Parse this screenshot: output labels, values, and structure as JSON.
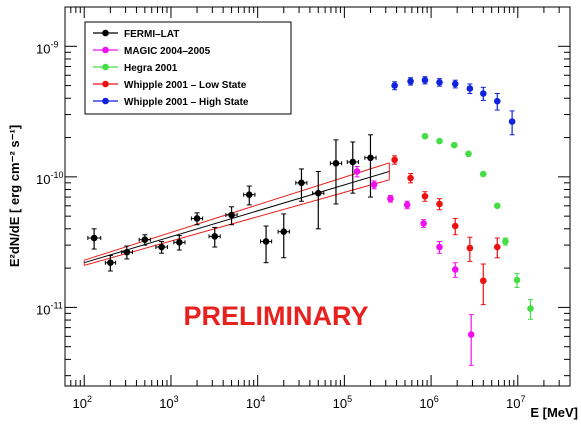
{
  "chart_data": {
    "type": "scatter",
    "x_scale": "log",
    "y_scale": "log",
    "xlim": [
      60,
      40000000
    ],
    "ylim": [
      2.5e-12,
      2e-09
    ],
    "xlabel": "E [MeV]",
    "ylabel": "E²dN/dE [ erg cm⁻² s⁻¹]",
    "x_ticks": [
      {
        "value": 100,
        "base": "10",
        "exp": "2"
      },
      {
        "value": 1000,
        "base": "10",
        "exp": "3"
      },
      {
        "value": 10000,
        "base": "10",
        "exp": "4"
      },
      {
        "value": 100000,
        "base": "10",
        "exp": "5"
      },
      {
        "value": 1000000,
        "base": "10",
        "exp": "6"
      },
      {
        "value": 10000000,
        "base": "10",
        "exp": "7"
      }
    ],
    "y_ticks": [
      {
        "value": 1e-11,
        "base": "10",
        "exp": "-11"
      },
      {
        "value": 1e-10,
        "base": "10",
        "exp": "-10"
      },
      {
        "value": 1e-09,
        "base": "10",
        "exp": "-9"
      }
    ],
    "legend_position": "top-left",
    "annotation": {
      "text": "PRELIMINARY",
      "color": "#e8201e"
    },
    "fit_band": {
      "color": "#e8201e",
      "line_color": "#000000",
      "x_range": [
        100,
        330000
      ],
      "center": [
        2.2e-11,
        1.1e-10
      ],
      "upper": [
        2.3e-11,
        1.28e-10
      ],
      "lower": [
        2.1e-11,
        9.5e-11
      ]
    },
    "series": [
      {
        "name": "FERMI–LAT",
        "color": "#000000",
        "points": [
          {
            "x": 130,
            "y": 3.4e-11,
            "yerr": [
              6e-12,
              6e-12
            ],
            "xerr": [
              20,
              25
            ]
          },
          {
            "x": 200,
            "y": 2.2e-11,
            "yerr": [
              3e-12,
              3e-12
            ],
            "xerr": [
              25,
              30
            ]
          },
          {
            "x": 310,
            "y": 2.65e-11,
            "yerr": [
              3e-12,
              3e-12
            ],
            "xerr": [
              40,
              50
            ]
          },
          {
            "x": 500,
            "y": 3.3e-11,
            "yerr": [
              3e-12,
              3e-12
            ],
            "xerr": [
              70,
              80
            ]
          },
          {
            "x": 780,
            "y": 2.9e-11,
            "yerr": [
              3e-12,
              3e-12
            ],
            "xerr": [
              110,
              130
            ]
          },
          {
            "x": 1250,
            "y": 3.15e-11,
            "yerr": [
              4e-12,
              4e-12
            ],
            "xerr": [
              170,
              200
            ]
          },
          {
            "x": 2000,
            "y": 4.8e-11,
            "yerr": [
              5e-12,
              5e-12
            ],
            "xerr": [
              280,
              320
            ]
          },
          {
            "x": 3200,
            "y": 3.5e-11,
            "yerr": [
              6e-12,
              6e-12
            ],
            "xerr": [
              450,
              500
            ]
          },
          {
            "x": 5000,
            "y": 5.1e-11,
            "yerr": [
              8e-12,
              8e-12
            ],
            "xerr": [
              700,
              800
            ]
          },
          {
            "x": 8000,
            "y": 7.3e-11,
            "yerr": [
              1.2e-11,
              1.2e-11
            ],
            "xerr": [
              1100,
              1300
            ]
          },
          {
            "x": 12500,
            "y": 3.2e-11,
            "yerr": [
              1e-11,
              1e-11
            ],
            "xerr": [
              1700,
              2000
            ]
          },
          {
            "x": 20000,
            "y": 3.8e-11,
            "yerr": [
              1.4e-11,
              1.4e-11
            ],
            "xerr": [
              2800,
              3200
            ]
          },
          {
            "x": 32000,
            "y": 9e-11,
            "yerr": [
              2.5e-11,
              2.5e-11
            ],
            "xerr": [
              4500,
              5000
            ]
          },
          {
            "x": 50000,
            "y": 7.5e-11,
            "yerr": [
              3.5e-11,
              3.5e-11
            ],
            "xerr": [
              7000,
              8000
            ]
          },
          {
            "x": 80000,
            "y": 1.27e-10,
            "yerr": [
              6.5e-11,
              6.5e-11
            ],
            "xerr": [
              11000,
              13000
            ]
          },
          {
            "x": 125000,
            "y": 1.3e-10,
            "yerr": [
              5.5e-11,
              5.5e-11
            ],
            "xerr": [
              17000,
              20000
            ]
          },
          {
            "x": 200000,
            "y": 1.4e-10,
            "yerr": [
              7e-11,
              7e-11
            ],
            "xerr": [
              28000,
              32000
            ]
          }
        ]
      },
      {
        "name": "MAGIC 2004–2005",
        "color": "#ee11ee",
        "points": [
          {
            "x": 140000,
            "y": 1.1e-10,
            "yerr": [
              1e-11,
              1e-11
            ]
          },
          {
            "x": 220000,
            "y": 8.7e-11,
            "yerr": [
              6e-12,
              6e-12
            ]
          },
          {
            "x": 340000,
            "y": 6.8e-11,
            "yerr": [
              4e-12,
              4e-12
            ]
          },
          {
            "x": 530000,
            "y": 6.1e-11,
            "yerr": [
              4e-12,
              4e-12
            ]
          },
          {
            "x": 820000,
            "y": 4.4e-11,
            "yerr": [
              3e-12,
              3e-12
            ]
          },
          {
            "x": 1250000,
            "y": 2.9e-11,
            "yerr": [
              3e-12,
              3e-12
            ]
          },
          {
            "x": 1900000,
            "y": 1.95e-11,
            "yerr": [
              2.5e-12,
              2.5e-12
            ]
          },
          {
            "x": 2900000,
            "y": 6.2e-12,
            "yerr": [
              2.6e-12,
              2.6e-12
            ]
          }
        ]
      },
      {
        "name": "Hegra 2001",
        "color": "#44dd44",
        "points": [
          {
            "x": 850000,
            "y": 2.05e-10,
            "yerr": [
              0,
              0
            ]
          },
          {
            "x": 1250000,
            "y": 1.88e-10,
            "yerr": [
              0,
              0
            ]
          },
          {
            "x": 1850000,
            "y": 1.75e-10,
            "yerr": [
              0,
              0
            ]
          },
          {
            "x": 2700000,
            "y": 1.5e-10,
            "yerr": [
              0,
              0
            ]
          },
          {
            "x": 4000000,
            "y": 1.05e-10,
            "yerr": [
              0,
              0
            ]
          },
          {
            "x": 5800000,
            "y": 6e-11,
            "yerr": [
              0,
              0
            ]
          },
          {
            "x": 7200000,
            "y": 3.2e-11,
            "yerr": [
              2e-12,
              2e-12
            ]
          },
          {
            "x": 9800000,
            "y": 1.62e-11,
            "yerr": [
              2e-12,
              2e-12
            ]
          },
          {
            "x": 14000000,
            "y": 9.8e-12,
            "yerr": [
              1.7e-12,
              1.7e-12
            ]
          }
        ]
      },
      {
        "name": "Whipple 2001 – Low State",
        "color": "#ee1111",
        "points": [
          {
            "x": 380000,
            "y": 1.35e-10,
            "yerr": [
              1e-11,
              1e-11
            ]
          },
          {
            "x": 580000,
            "y": 9.8e-11,
            "yerr": [
              8e-12,
              8e-12
            ]
          },
          {
            "x": 850000,
            "y": 7.1e-11,
            "yerr": [
              6e-12,
              6e-12
            ]
          },
          {
            "x": 1250000,
            "y": 6.2e-11,
            "yerr": [
              6e-12,
              6e-12
            ]
          },
          {
            "x": 1900000,
            "y": 4.2e-11,
            "yerr": [
              6e-12,
              6e-12
            ]
          },
          {
            "x": 2800000,
            "y": 2.85e-11,
            "yerr": [
              6e-12,
              6e-12
            ]
          },
          {
            "x": 4000000,
            "y": 1.6e-11,
            "yerr": [
              5.5e-12,
              5.5e-12
            ]
          },
          {
            "x": 5800000,
            "y": 2.9e-11,
            "yerr": [
              5e-12,
              5e-12
            ]
          }
        ]
      },
      {
        "name": "Whipple 2001 – High State",
        "color": "#1122dd",
        "points": [
          {
            "x": 380000,
            "y": 5e-10,
            "yerr": [
              3.5e-11,
              3.5e-11
            ]
          },
          {
            "x": 580000,
            "y": 5.4e-10,
            "yerr": [
              3.5e-11,
              3.5e-11
            ]
          },
          {
            "x": 850000,
            "y": 5.5e-10,
            "yerr": [
              3.5e-11,
              3.5e-11
            ]
          },
          {
            "x": 1250000,
            "y": 5.3e-10,
            "yerr": [
              3.5e-11,
              3.5e-11
            ]
          },
          {
            "x": 1900000,
            "y": 5.15e-10,
            "yerr": [
              3.5e-11,
              3.5e-11
            ]
          },
          {
            "x": 2800000,
            "y": 4.75e-10,
            "yerr": [
              4e-11,
              4e-11
            ]
          },
          {
            "x": 4000000,
            "y": 4.35e-10,
            "yerr": [
              5e-11,
              5e-11
            ]
          },
          {
            "x": 5800000,
            "y": 3.8e-10,
            "yerr": [
              5.5e-11,
              5.5e-11
            ]
          },
          {
            "x": 8600000,
            "y": 2.65e-10,
            "yerr": [
              5.5e-11,
              5.5e-11
            ]
          }
        ]
      }
    ]
  }
}
